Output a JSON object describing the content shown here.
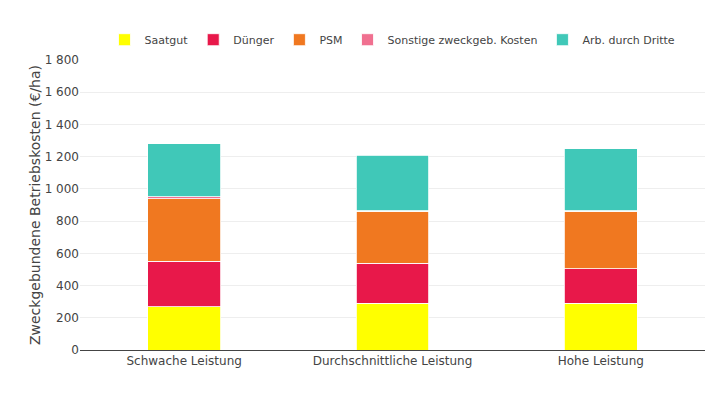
{
  "chart_data": {
    "type": "bar",
    "stacked": true,
    "categories": [
      "Schwache Leistung",
      "Durchschnittliche Leistung",
      "Hohe Leistung"
    ],
    "series": [
      {
        "name": "Saatgut",
        "color": "#FFFF00",
        "values": [
          270,
          290,
          290
        ]
      },
      {
        "name": "Dünger",
        "color": "#E8184A",
        "values": [
          280,
          250,
          215
        ]
      },
      {
        "name": "PSM",
        "color": "#F07820",
        "values": [
          390,
          320,
          355
        ]
      },
      {
        "name": "Sonstige zweckgeb. Kosten",
        "color": "#F07090",
        "values": [
          10,
          5,
          5
        ]
      },
      {
        "name": "Arb. durch Dritte",
        "color": "#40C8B8",
        "values": [
          330,
          345,
          385
        ]
      }
    ],
    "ylabel": "Zweckgebundene Betriebskosten (€/ha)",
    "ylim": [
      0,
      1800
    ],
    "yticks": [
      0,
      200,
      400,
      600,
      800,
      {
        "value": 1000,
        "label": "1 000"
      },
      {
        "value": 1200,
        "label": "1 200"
      },
      {
        "value": 1400,
        "label": "1 400"
      },
      {
        "value": 1600,
        "label": "1 600"
      },
      {
        "value": 1800,
        "label": "1 800"
      }
    ],
    "grid": true,
    "legend": "top"
  }
}
